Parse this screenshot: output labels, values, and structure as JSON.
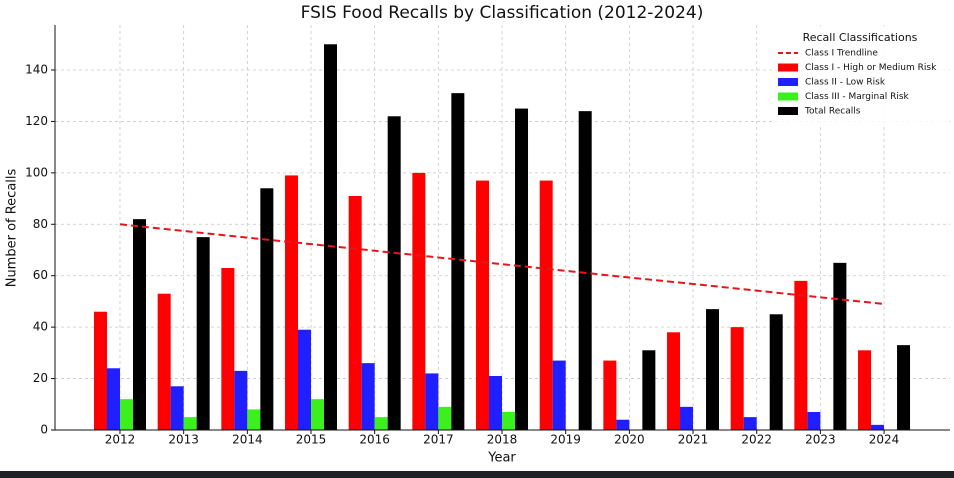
{
  "chart_data": {
    "type": "bar",
    "title": "FSIS Food Recalls by Classification (2012-2024)",
    "x_label": "Year",
    "y_label": "Number of Recalls",
    "legend_title": "Recall Classifications",
    "categories": [
      "2012",
      "2013",
      "2014",
      "2015",
      "2016",
      "2017",
      "2018",
      "2019",
      "2020",
      "2021",
      "2022",
      "2023",
      "2024"
    ],
    "series": [
      {
        "name": "Class I Trendline",
        "color": "#e8141c",
        "type": "line",
        "values": [
          80,
          77.4,
          74.8,
          72.3,
          69.7,
          67.1,
          64.5,
          61.9,
          59.3,
          56.8,
          54.2,
          51.6,
          49
        ]
      },
      {
        "name": "Class I - High or Medium Risk",
        "color": "#ff0000",
        "values": [
          46,
          53,
          63,
          99,
          91,
          100,
          97,
          97,
          27,
          38,
          40,
          58,
          31
        ]
      },
      {
        "name": "Class II - Low Risk",
        "color": "#1f1fff",
        "values": [
          24,
          17,
          23,
          39,
          26,
          22,
          21,
          27,
          4,
          9,
          5,
          7,
          2
        ]
      },
      {
        "name": "Class III - Marginal Risk",
        "color": "#3cf01e",
        "values": [
          12,
          5,
          8,
          12,
          5,
          9,
          7,
          0,
          0,
          0,
          0,
          0,
          0
        ]
      },
      {
        "name": "Total Recalls",
        "color": "#000000",
        "values": [
          82,
          75,
          94,
          150,
          122,
          131,
          125,
          124,
          31,
          47,
          45,
          65,
          33
        ]
      }
    ],
    "ylim": [
      0,
      157.5
    ],
    "yticks": [
      0,
      20,
      40,
      60,
      80,
      100,
      120,
      140
    ],
    "grid": true,
    "legend": "upper right"
  }
}
